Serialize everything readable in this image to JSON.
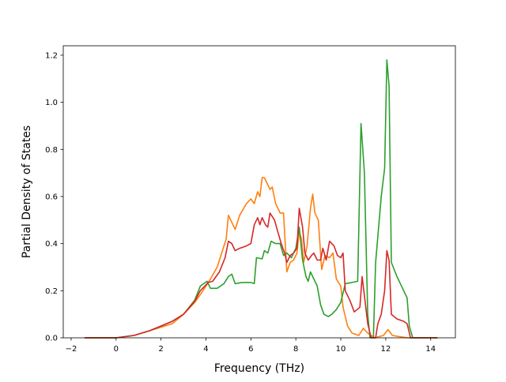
{
  "chart_data": {
    "type": "line",
    "title": "",
    "xlabel": "Frequency (THz)",
    "ylabel": "Partial Density of States",
    "xlim": [
      -2.35,
      15.1
    ],
    "ylim": [
      0.0,
      1.24
    ],
    "xticks": [
      -2,
      0,
      2,
      4,
      6,
      8,
      10,
      12,
      14
    ],
    "yticks": [
      0.0,
      0.2,
      0.4,
      0.6,
      0.8,
      1.0,
      1.2
    ],
    "xtick_labels": [
      "−2",
      "0",
      "2",
      "4",
      "6",
      "8",
      "10",
      "12",
      "14"
    ],
    "ytick_labels": [
      "0.0",
      "0.2",
      "0.4",
      "0.6",
      "0.8",
      "1.0",
      "1.2"
    ],
    "grid": false,
    "legend": "none",
    "series": [
      {
        "color": "#ff7f0e",
        "points": [
          [
            -1.4,
            0
          ],
          [
            0,
            0
          ],
          [
            0.8,
            0.01
          ],
          [
            1.5,
            0.03
          ],
          [
            2.0,
            0.045
          ],
          [
            2.5,
            0.06
          ],
          [
            3.0,
            0.1
          ],
          [
            3.5,
            0.15
          ],
          [
            3.8,
            0.19
          ],
          [
            4.0,
            0.22
          ],
          [
            4.2,
            0.25
          ],
          [
            4.5,
            0.3
          ],
          [
            4.7,
            0.36
          ],
          [
            4.9,
            0.42
          ],
          [
            5.0,
            0.52
          ],
          [
            5.15,
            0.49
          ],
          [
            5.3,
            0.46
          ],
          [
            5.5,
            0.52
          ],
          [
            5.8,
            0.57
          ],
          [
            6.0,
            0.59
          ],
          [
            6.15,
            0.57
          ],
          [
            6.3,
            0.62
          ],
          [
            6.4,
            0.6
          ],
          [
            6.5,
            0.68
          ],
          [
            6.6,
            0.68
          ],
          [
            6.75,
            0.65
          ],
          [
            6.85,
            0.63
          ],
          [
            6.95,
            0.64
          ],
          [
            7.1,
            0.57
          ],
          [
            7.3,
            0.53
          ],
          [
            7.45,
            0.53
          ],
          [
            7.6,
            0.28
          ],
          [
            7.75,
            0.32
          ],
          [
            7.9,
            0.33
          ],
          [
            8.05,
            0.36
          ],
          [
            8.15,
            0.45
          ],
          [
            8.25,
            0.42
          ],
          [
            8.35,
            0.32
          ],
          [
            8.5,
            0.39
          ],
          [
            8.65,
            0.55
          ],
          [
            8.75,
            0.61
          ],
          [
            8.85,
            0.53
          ],
          [
            9.0,
            0.5
          ],
          [
            9.15,
            0.29
          ],
          [
            9.3,
            0.35
          ],
          [
            9.5,
            0.34
          ],
          [
            9.65,
            0.36
          ],
          [
            9.8,
            0.25
          ],
          [
            10.0,
            0.22
          ],
          [
            10.1,
            0.13
          ],
          [
            10.3,
            0.05
          ],
          [
            10.5,
            0.02
          ],
          [
            10.8,
            0.01
          ],
          [
            11.0,
            0.04
          ],
          [
            11.2,
            0.02
          ],
          [
            11.5,
            0.0
          ],
          [
            11.9,
            0.01
          ],
          [
            12.1,
            0.035
          ],
          [
            12.3,
            0.01
          ],
          [
            12.6,
            0.005
          ],
          [
            13.0,
            0.0
          ],
          [
            14.3,
            0.0
          ]
        ]
      },
      {
        "color": "#2ca02c",
        "points": [
          [
            -1.4,
            0
          ],
          [
            0,
            0
          ],
          [
            0.8,
            0.01
          ],
          [
            1.5,
            0.03
          ],
          [
            2.0,
            0.05
          ],
          [
            2.5,
            0.07
          ],
          [
            3.0,
            0.1
          ],
          [
            3.5,
            0.16
          ],
          [
            3.75,
            0.22
          ],
          [
            3.9,
            0.23
          ],
          [
            4.05,
            0.24
          ],
          [
            4.2,
            0.21
          ],
          [
            4.5,
            0.21
          ],
          [
            4.8,
            0.23
          ],
          [
            5.0,
            0.26
          ],
          [
            5.15,
            0.27
          ],
          [
            5.3,
            0.23
          ],
          [
            5.6,
            0.235
          ],
          [
            6.0,
            0.235
          ],
          [
            6.15,
            0.23
          ],
          [
            6.25,
            0.34
          ],
          [
            6.5,
            0.335
          ],
          [
            6.6,
            0.37
          ],
          [
            6.75,
            0.36
          ],
          [
            6.9,
            0.41
          ],
          [
            7.1,
            0.4
          ],
          [
            7.3,
            0.4
          ],
          [
            7.45,
            0.35
          ],
          [
            7.6,
            0.36
          ],
          [
            7.8,
            0.34
          ],
          [
            8.0,
            0.38
          ],
          [
            8.15,
            0.47
          ],
          [
            8.3,
            0.33
          ],
          [
            8.45,
            0.26
          ],
          [
            8.55,
            0.24
          ],
          [
            8.65,
            0.28
          ],
          [
            8.8,
            0.25
          ],
          [
            8.95,
            0.22
          ],
          [
            9.1,
            0.14
          ],
          [
            9.25,
            0.1
          ],
          [
            9.45,
            0.09
          ],
          [
            9.6,
            0.1
          ],
          [
            9.8,
            0.12
          ],
          [
            10.0,
            0.15
          ],
          [
            10.2,
            0.23
          ],
          [
            10.5,
            0.235
          ],
          [
            10.75,
            0.24
          ],
          [
            10.9,
            0.91
          ],
          [
            11.05,
            0.7
          ],
          [
            11.2,
            0.1
          ],
          [
            11.3,
            0.0
          ],
          [
            11.45,
            0.0
          ],
          [
            11.55,
            0.32
          ],
          [
            11.8,
            0.6
          ],
          [
            11.95,
            0.72
          ],
          [
            12.05,
            1.18
          ],
          [
            12.15,
            1.07
          ],
          [
            12.25,
            0.32
          ],
          [
            12.5,
            0.26
          ],
          [
            12.8,
            0.2
          ],
          [
            12.95,
            0.17
          ],
          [
            13.05,
            0.05
          ],
          [
            13.2,
            0.0
          ],
          [
            14.3,
            0.0
          ]
        ]
      },
      {
        "color": "#d62728",
        "points": [
          [
            -1.4,
            0
          ],
          [
            0,
            0
          ],
          [
            0.8,
            0.01
          ],
          [
            1.5,
            0.03
          ],
          [
            2.0,
            0.05
          ],
          [
            2.5,
            0.07
          ],
          [
            3.0,
            0.1
          ],
          [
            3.5,
            0.155
          ],
          [
            3.75,
            0.2
          ],
          [
            3.95,
            0.22
          ],
          [
            4.1,
            0.235
          ],
          [
            4.3,
            0.24
          ],
          [
            4.6,
            0.28
          ],
          [
            4.85,
            0.34
          ],
          [
            5.0,
            0.41
          ],
          [
            5.15,
            0.4
          ],
          [
            5.3,
            0.37
          ],
          [
            5.5,
            0.38
          ],
          [
            5.8,
            0.39
          ],
          [
            6.0,
            0.4
          ],
          [
            6.15,
            0.48
          ],
          [
            6.3,
            0.51
          ],
          [
            6.4,
            0.48
          ],
          [
            6.5,
            0.51
          ],
          [
            6.65,
            0.48
          ],
          [
            6.75,
            0.47
          ],
          [
            6.85,
            0.53
          ],
          [
            7.05,
            0.5
          ],
          [
            7.2,
            0.45
          ],
          [
            7.35,
            0.4
          ],
          [
            7.5,
            0.36
          ],
          [
            7.6,
            0.32
          ],
          [
            7.75,
            0.35
          ],
          [
            7.9,
            0.36
          ],
          [
            8.05,
            0.38
          ],
          [
            8.15,
            0.55
          ],
          [
            8.3,
            0.47
          ],
          [
            8.4,
            0.36
          ],
          [
            8.55,
            0.33
          ],
          [
            8.7,
            0.35
          ],
          [
            8.8,
            0.36
          ],
          [
            8.95,
            0.33
          ],
          [
            9.1,
            0.33
          ],
          [
            9.2,
            0.38
          ],
          [
            9.35,
            0.33
          ],
          [
            9.5,
            0.41
          ],
          [
            9.7,
            0.39
          ],
          [
            9.85,
            0.35
          ],
          [
            10.0,
            0.34
          ],
          [
            10.1,
            0.36
          ],
          [
            10.2,
            0.2
          ],
          [
            10.4,
            0.16
          ],
          [
            10.6,
            0.11
          ],
          [
            10.85,
            0.13
          ],
          [
            10.95,
            0.26
          ],
          [
            11.1,
            0.14
          ],
          [
            11.2,
            0.06
          ],
          [
            11.35,
            0.0
          ],
          [
            11.55,
            0.0
          ],
          [
            11.65,
            0.06
          ],
          [
            11.8,
            0.1
          ],
          [
            11.95,
            0.2
          ],
          [
            12.05,
            0.37
          ],
          [
            12.15,
            0.33
          ],
          [
            12.25,
            0.1
          ],
          [
            12.5,
            0.08
          ],
          [
            12.8,
            0.07
          ],
          [
            12.95,
            0.06
          ],
          [
            13.1,
            0.0
          ],
          [
            14.3,
            0.0
          ]
        ]
      }
    ]
  }
}
